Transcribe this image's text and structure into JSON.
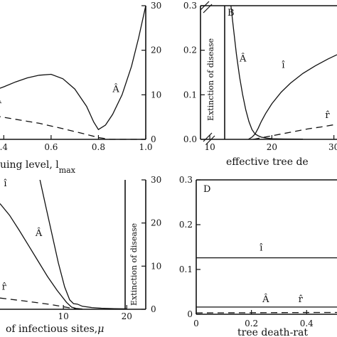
{
  "chart_data": [
    {
      "id": "top-left",
      "type": "line",
      "xlabel": "uing level, l",
      "xlabel_sub": "max",
      "x_ticks": [
        0.4,
        0.6,
        0.8,
        1.0
      ],
      "x_tick_labels": [
        ".4",
        "0.6",
        "0.8",
        "1.0"
      ],
      "xlim": [
        0.36,
        1.0
      ],
      "y_right_ticks": [
        0,
        10,
        20,
        30
      ],
      "y_right_tick_labels": [
        "0",
        "10",
        "20",
        "30"
      ],
      "ylim_right": [
        0,
        30
      ],
      "series": [
        {
          "name": "Â",
          "style": "solid",
          "axis": "right",
          "x": [
            0.36,
            0.4,
            0.45,
            0.5,
            0.55,
            0.6,
            0.65,
            0.7,
            0.75,
            0.78,
            0.8,
            0.83,
            0.86,
            0.9,
            0.94,
            0.97,
            1.0
          ],
          "y": [
            11.0,
            11.8,
            12.9,
            13.8,
            14.4,
            14.6,
            13.6,
            11.3,
            7.4,
            3.9,
            2.2,
            3.2,
            5.6,
            10.0,
            16.4,
            22.8,
            30.0
          ]
        },
        {
          "name": "r̂",
          "style": "dashed",
          "axis": "right",
          "x": [
            0.36,
            0.45,
            0.55,
            0.65,
            0.75,
            0.8,
            0.85,
            0.9,
            1.0
          ],
          "y": [
            5.3,
            4.5,
            3.6,
            2.4,
            1.1,
            0.4,
            0.0,
            0.0,
            0.0
          ]
        }
      ]
    },
    {
      "id": "top-right",
      "type": "line",
      "panel_label": "B",
      "xlabel": "effective tree de",
      "x_ticks": [
        10,
        20,
        30
      ],
      "x_tick_labels": [
        "10",
        "20",
        "30"
      ],
      "xlim": [
        8.5,
        30.5
      ],
      "y_ticks": [
        0.0,
        0.1,
        0.2,
        0.3
      ],
      "y_tick_labels": [
        "0.0",
        "0.1",
        "0.2",
        "0.3"
      ],
      "ylim": [
        0,
        0.3
      ],
      "annotation": "Extinction of disease",
      "series": [
        {
          "name": "Â",
          "style": "solid",
          "x": [
            13.4,
            13.8,
            14.3,
            14.8,
            15.3,
            15.8,
            16.3,
            16.8,
            17.3,
            17.8,
            18.3,
            19.0,
            20.0,
            22.0,
            25.0
          ],
          "y": [
            0.3,
            0.25,
            0.19,
            0.14,
            0.1,
            0.066,
            0.04,
            0.022,
            0.012,
            0.008,
            0.005,
            0.003,
            0.0015,
            0.0008,
            0.0004
          ]
        },
        {
          "name": "î",
          "style": "solid",
          "x": [
            16.2,
            16.8,
            17.3,
            17.8,
            18.3,
            19.0,
            20.0,
            21.5,
            23.0,
            25.0,
            27.0,
            29.0,
            30.5
          ],
          "y": [
            0.0,
            0.005,
            0.012,
            0.025,
            0.04,
            0.058,
            0.08,
            0.106,
            0.126,
            0.148,
            0.165,
            0.18,
            0.19
          ]
        },
        {
          "name": "r̂",
          "style": "dashed",
          "x": [
            17.0,
            20.0,
            23.0,
            26.0,
            28.0,
            30.5
          ],
          "y": [
            0.0,
            0.008,
            0.016,
            0.024,
            0.028,
            0.034
          ]
        }
      ]
    },
    {
      "id": "bottom-left",
      "type": "line",
      "xlabel": "of infectious sites,",
      "xlabel_symbol": "μ",
      "x_ticks": [
        10,
        20
      ],
      "x_tick_labels": [
        "10",
        "20"
      ],
      "xlim": [
        0,
        23
      ],
      "y_right_ticks": [
        0,
        10,
        20,
        30
      ],
      "y_right_tick_labels": [
        "0",
        "10",
        "20",
        "30"
      ],
      "ylim_right": [
        0,
        30
      ],
      "annotation": "Extinction of disease",
      "series": [
        {
          "name": "î",
          "style": "solid",
          "axis": "right",
          "x": [
            0.0,
            1.5,
            3.0,
            4.5,
            6.0,
            7.5,
            9.0,
            10.5,
            11.3,
            12.0,
            13.0
          ],
          "y": [
            24.5,
            21.8,
            18.4,
            14.8,
            11.2,
            7.6,
            4.4,
            1.6,
            0.5,
            0.2,
            0.05
          ]
        },
        {
          "name": "Â",
          "style": "solid",
          "axis": "right",
          "x": [
            6.3,
            7.2,
            8.2,
            9.2,
            10.2,
            11.0,
            11.6,
            12.2,
            13.0,
            14.5,
            16.0,
            18.0,
            20.0
          ],
          "y": [
            30.0,
            24.0,
            17.4,
            10.8,
            5.2,
            2.2,
            1.3,
            1.2,
            0.7,
            0.4,
            0.25,
            0.15,
            0.1
          ]
        },
        {
          "name": "r̂",
          "style": "dashed",
          "axis": "right",
          "x": [
            0.0,
            4.0,
            8.0,
            11.5,
            12.5
          ],
          "y": [
            2.6,
            1.9,
            1.1,
            0.2,
            0.0
          ]
        }
      ]
    },
    {
      "id": "bottom-right",
      "type": "line",
      "panel_label": "D",
      "xlabel": "tree death-rat",
      "x_ticks": [
        0.0,
        0.2,
        0.4
      ],
      "x_tick_labels": [
        "0",
        "0.2",
        "0.4"
      ],
      "xlim": [
        0,
        0.51
      ],
      "y_ticks": [
        0.0,
        0.1,
        0.2,
        0.3
      ],
      "y_tick_labels": [
        "0",
        "0.1",
        "0.2",
        "0.3"
      ],
      "ylim": [
        0,
        0.3
      ],
      "series": [
        {
          "name": "î",
          "style": "solid",
          "x": [
            0.0,
            0.51
          ],
          "y": [
            0.126,
            0.126
          ]
        },
        {
          "name": "Â",
          "style": "solid",
          "x": [
            0.0,
            0.51
          ],
          "y": [
            0.016,
            0.016
          ]
        },
        {
          "name": "r̂",
          "style": "dashed",
          "x": [
            0.0,
            0.45,
            0.51
          ],
          "y": [
            0.003,
            0.004,
            0.004
          ]
        }
      ]
    }
  ]
}
